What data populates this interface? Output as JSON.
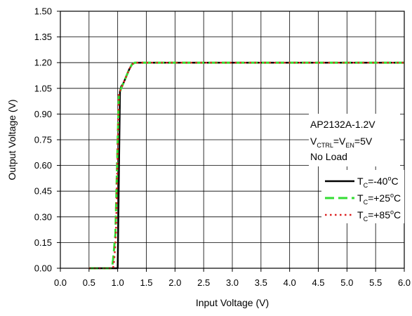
{
  "chart_data": {
    "type": "line",
    "title": "",
    "xlabel": "Input Voltage (V)",
    "ylabel": "Output Voltage (V)",
    "xlim": [
      0.0,
      6.0
    ],
    "ylim": [
      0.0,
      1.5
    ],
    "x_ticks": [
      "0.0",
      "0.5",
      "1.0",
      "1.5",
      "2.0",
      "2.5",
      "3.0",
      "3.5",
      "4.0",
      "4.5",
      "5.0",
      "5.5",
      "6.0"
    ],
    "y_ticks": [
      "0.00",
      "0.15",
      "0.30",
      "0.45",
      "0.60",
      "0.75",
      "0.90",
      "1.05",
      "1.20",
      "1.35",
      "1.50"
    ],
    "grid": true,
    "legend_position": "right",
    "annotation": {
      "device": "AP2132A-1.2V",
      "condition_prefix": "V",
      "condition_sub1": "CTRL",
      "condition_mid": "=V",
      "condition_sub2": "EN",
      "condition_suffix": "=5V",
      "load": "No Load"
    },
    "series": [
      {
        "name": "TC=-40oC",
        "label_main": "T",
        "label_sub": "C",
        "label_value": "=-40",
        "label_sup": "o",
        "label_unit": "C",
        "color": "#000000",
        "dash": "solid",
        "x": [
          0.5,
          0.98,
          0.99,
          1.0,
          1.04,
          1.06,
          1.1,
          1.15,
          1.2,
          1.25,
          1.3,
          1.4,
          6.0
        ],
        "y": [
          0.0,
          0.0,
          0.0,
          0.0,
          1.03,
          1.06,
          1.08,
          1.12,
          1.16,
          1.19,
          1.2,
          1.2,
          1.2
        ]
      },
      {
        "name": "TC=+25oC",
        "label_main": "T",
        "label_sub": "C",
        "label_value": "=+25",
        "label_sup": "o",
        "label_unit": "C",
        "color": "#33dd33",
        "dash": "long-dash",
        "x": [
          0.5,
          0.9,
          0.92,
          0.96,
          1.02,
          1.06,
          1.1,
          1.15,
          1.2,
          1.25,
          1.3,
          1.4,
          6.0
        ],
        "y": [
          0.0,
          0.0,
          0.05,
          0.2,
          1.01,
          1.05,
          1.08,
          1.12,
          1.16,
          1.19,
          1.2,
          1.2,
          1.2
        ]
      },
      {
        "name": "TC=+85oC",
        "label_main": "T",
        "label_sub": "C",
        "label_value": "=+85",
        "label_sup": "o",
        "label_unit": "C",
        "color": "#dd2222",
        "dash": "dotted",
        "x": [
          0.5,
          0.92,
          0.94,
          0.97,
          1.02,
          1.06,
          1.1,
          1.15,
          1.2,
          1.25,
          1.3,
          1.4,
          6.0
        ],
        "y": [
          0.0,
          0.0,
          0.05,
          0.2,
          1.02,
          1.05,
          1.08,
          1.12,
          1.16,
          1.19,
          1.2,
          1.2,
          1.2
        ]
      }
    ]
  }
}
